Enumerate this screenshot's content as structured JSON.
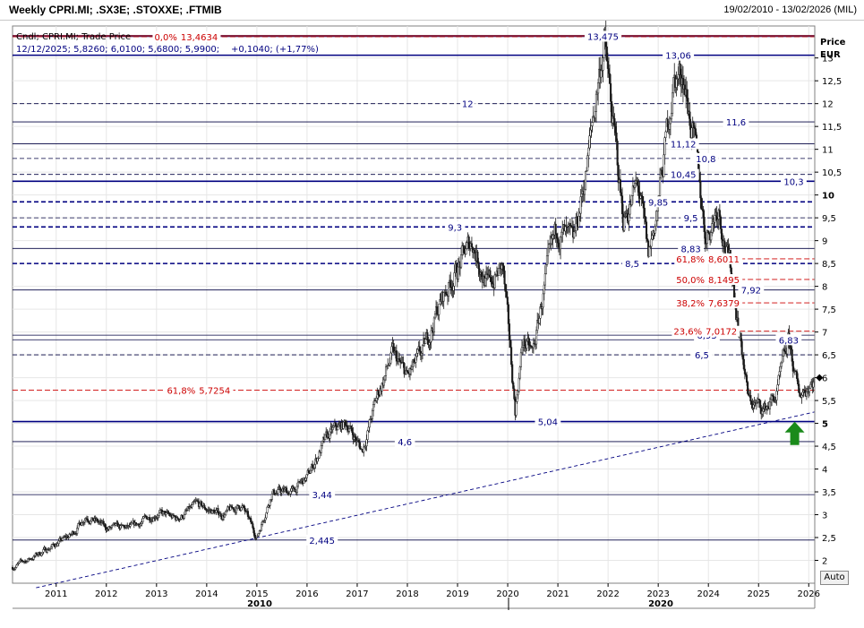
{
  "header": {
    "title": "Weekly CPRI.MI; .SX3E; .STOXXE; .FTMIB",
    "date_range": "19/02/2010 - 13/02/2026 (MIL)"
  },
  "legend": {
    "line1": "Cndl; CPRI.MI; Trade Price",
    "line2_prefix": "12/12/2025; 5,8260; 6,0100; 5,6800; 5,9900;",
    "line2_change": "+0,1040; (+1,77%)"
  },
  "axis": {
    "title_line1": "Price",
    "title_line2": "EUR",
    "auto_label": "Auto"
  },
  "colors": {
    "candles": "#1a1a1a",
    "solid_level": "#000080",
    "dashed_level": "#00007a",
    "fib_level": "#cc0000",
    "arrow": "#1a8a1a",
    "grid": "#e6e6e6"
  },
  "chart_data": {
    "type": "candlestick",
    "x_range": [
      2010.13,
      2026.12
    ],
    "ylim": [
      1.5,
      13.7
    ],
    "x_ticks": [
      "2011",
      "2012",
      "2013",
      "2014",
      "2015",
      "2016",
      "2017",
      "2018",
      "2019",
      "2020",
      "2021",
      "2022",
      "2023",
      "2024",
      "2025",
      "2026"
    ],
    "x_major_labels": [
      {
        "label": "2010",
        "year": 2010.0
      },
      {
        "label": "2020",
        "year": 2020.0
      }
    ],
    "y_ticks": [
      {
        "value": 2,
        "label": "2"
      },
      {
        "value": 2.5,
        "label": "2,5"
      },
      {
        "value": 3,
        "label": "3"
      },
      {
        "value": 3.5,
        "label": "3,5"
      },
      {
        "value": 4,
        "label": "4"
      },
      {
        "value": 4.5,
        "label": "4,5"
      },
      {
        "value": 5,
        "label": "5"
      },
      {
        "value": 5.5,
        "label": "5,5"
      },
      {
        "value": 6,
        "label": "6"
      },
      {
        "value": 6.5,
        "label": "6,5"
      },
      {
        "value": 7,
        "label": "7"
      },
      {
        "value": 7.5,
        "label": "7,5"
      },
      {
        "value": 8,
        "label": "8"
      },
      {
        "value": 8.5,
        "label": "8,5"
      },
      {
        "value": 9,
        "label": "9"
      },
      {
        "value": 9.5,
        "label": "9,5"
      },
      {
        "value": 10,
        "label": "10"
      },
      {
        "value": 10.5,
        "label": "10,5"
      },
      {
        "value": 11,
        "label": "11"
      },
      {
        "value": 11.5,
        "label": "11,5"
      },
      {
        "value": 12,
        "label": "12"
      },
      {
        "value": 12.5,
        "label": "12,5"
      },
      {
        "value": 13,
        "label": "13"
      }
    ],
    "bold_y_ticks": [
      5,
      10
    ],
    "horizontal_levels": [
      {
        "value": 13.475,
        "label": "13,475",
        "style": "solid-bold",
        "label_year": 2021.9
      },
      {
        "value": 13.06,
        "label": "13,06",
        "style": "solid-bold",
        "label_year": 2023.4
      },
      {
        "value": 12.0,
        "label": "12",
        "style": "dashed",
        "label_year": 2019.2
      },
      {
        "value": 11.6,
        "label": "11,6",
        "style": "solid",
        "label_year": 2024.55
      },
      {
        "value": 11.12,
        "label": "11,12",
        "style": "solid",
        "label_year": 2023.5
      },
      {
        "value": 10.8,
        "label": "10,8",
        "style": "dashed",
        "label_year": 2023.95
      },
      {
        "value": 10.45,
        "label": "10,45",
        "style": "dashed",
        "label_year": 2023.5
      },
      {
        "value": 10.3,
        "label": "10,3",
        "style": "solid-bold",
        "label_year": 2025.7
      },
      {
        "value": 9.85,
        "label": "9,85",
        "style": "dashed-bold",
        "label_year": 2023.0
      },
      {
        "value": 9.5,
        "label": "9,5",
        "style": "dashed",
        "label_year": 2023.65
      },
      {
        "value": 9.3,
        "label": "9,3",
        "style": "dashed-bold",
        "label_year": 2018.95
      },
      {
        "value": 8.83,
        "label": "8,83",
        "style": "solid",
        "label_year": 2023.65
      },
      {
        "value": 8.5,
        "label": "8,5",
        "style": "dashed-bold",
        "label_year": 2022.48
      },
      {
        "value": 7.92,
        "label": "7,92",
        "style": "solid",
        "label_year": 2024.85
      },
      {
        "value": 6.93,
        "label": "6,93",
        "style": "solid",
        "label_year": 2023.97
      },
      {
        "value": 6.83,
        "label": "6,83",
        "style": "solid",
        "label_year": 2025.6
      },
      {
        "value": 6.5,
        "label": "6,5",
        "style": "dashed",
        "label_year": 2023.87
      },
      {
        "value": 5.04,
        "label": "5,04",
        "style": "solid-bold",
        "label_year": 2020.8
      },
      {
        "value": 4.6,
        "label": "4,6",
        "style": "solid",
        "label_year": 2017.95
      },
      {
        "value": 3.44,
        "label": "3,44",
        "style": "solid",
        "label_year": 2016.3
      },
      {
        "value": 2.445,
        "label": "2,445",
        "style": "solid",
        "label_year": 2016.3
      }
    ],
    "fib_levels": [
      {
        "value": 13.4634,
        "label": "0,0%",
        "value_label": "13,4634",
        "label_year": 2013.6,
        "from_year": 2010.13
      },
      {
        "value": 8.6011,
        "label": "61,8%",
        "value_label": "8,6011",
        "label_year": 2024.0,
        "from_year": 2023.5
      },
      {
        "value": 8.1495,
        "label": "50,0%",
        "value_label": "8,1495",
        "label_year": 2024.0,
        "from_year": 2023.5
      },
      {
        "value": 7.6379,
        "label": "38,2%",
        "value_label": "7,6379",
        "label_year": 2024.0,
        "from_year": 2023.5
      },
      {
        "value": 7.0172,
        "label": "23,6%",
        "value_label": "7,0172",
        "label_year": 2023.95,
        "from_year": 2023.5
      },
      {
        "value": 5.7254,
        "label": "61,8%",
        "value_label": "5,7254",
        "label_year": 2013.85,
        "from_year": 2010.13
      }
    ],
    "trendline": [
      {
        "year": 2010.6,
        "value": 1.4
      },
      {
        "year": 2026.12,
        "value": 5.25
      }
    ],
    "arrow": {
      "year": 2025.72,
      "value": 4.8
    },
    "current_marker": {
      "year": 2026.0,
      "value": 6.0
    },
    "path_anchors": [
      [
        2010.13,
        1.85
      ],
      [
        2010.5,
        2.05
      ],
      [
        2010.9,
        2.3
      ],
      [
        2011.3,
        2.55
      ],
      [
        2011.6,
        3.0
      ],
      [
        2012.0,
        2.7
      ],
      [
        2012.5,
        2.7
      ],
      [
        2013.0,
        3.05
      ],
      [
        2013.4,
        2.9
      ],
      [
        2013.8,
        3.2
      ],
      [
        2014.3,
        3.0
      ],
      [
        2014.7,
        3.2
      ],
      [
        2015.0,
        2.5
      ],
      [
        2015.3,
        3.5
      ],
      [
        2015.7,
        3.5
      ],
      [
        2016.0,
        3.8
      ],
      [
        2016.3,
        4.5
      ],
      [
        2016.5,
        4.8
      ],
      [
        2016.8,
        5.0
      ],
      [
        2017.1,
        4.4
      ],
      [
        2017.4,
        5.6
      ],
      [
        2017.7,
        6.5
      ],
      [
        2018.0,
        6.0
      ],
      [
        2018.3,
        6.5
      ],
      [
        2018.6,
        7.5
      ],
      [
        2018.9,
        8.2
      ],
      [
        2019.3,
        9.0
      ],
      [
        2019.6,
        8.0
      ],
      [
        2019.9,
        8.4
      ],
      [
        2020.15,
        5.3
      ],
      [
        2020.3,
        6.8
      ],
      [
        2020.5,
        6.5
      ],
      [
        2020.75,
        8.1
      ],
      [
        2021.0,
        9.3
      ],
      [
        2021.3,
        8.8
      ],
      [
        2021.6,
        10.8
      ],
      [
        2021.8,
        12.5
      ],
      [
        2021.92,
        13.4
      ],
      [
        2022.1,
        11.5
      ],
      [
        2022.3,
        9.5
      ],
      [
        2022.6,
        10.2
      ],
      [
        2022.8,
        8.6
      ],
      [
        2023.0,
        9.8
      ],
      [
        2023.3,
        12.5
      ],
      [
        2023.5,
        12.7
      ],
      [
        2023.7,
        11.2
      ],
      [
        2023.95,
        9.1
      ],
      [
        2024.2,
        9.8
      ],
      [
        2024.5,
        8.0
      ],
      [
        2024.8,
        5.5
      ],
      [
        2025.1,
        5.3
      ],
      [
        2025.35,
        5.6
      ],
      [
        2025.6,
        6.8
      ],
      [
        2025.8,
        5.6
      ],
      [
        2026.05,
        5.95
      ]
    ]
  }
}
